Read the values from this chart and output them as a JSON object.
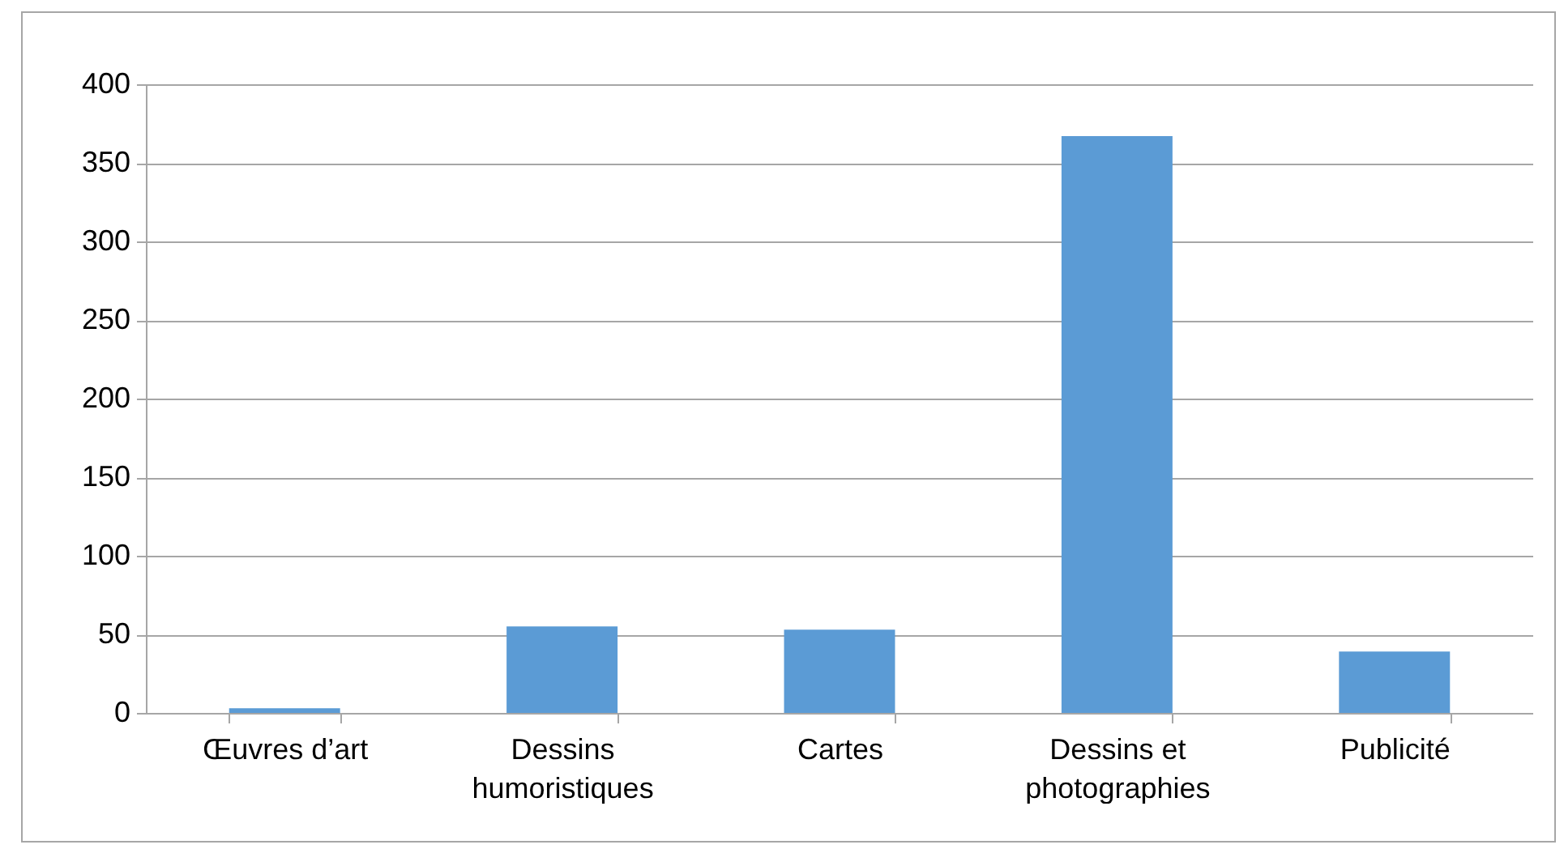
{
  "chart_data": {
    "type": "bar",
    "categories": [
      "Œuvres d’art",
      "Dessins humoristiques",
      "Cartes",
      "Dessins et photographies",
      "Publicité"
    ],
    "values": [
      3,
      55,
      53,
      367,
      39
    ],
    "color": "#5b9bd5",
    "ylim": [
      0,
      400
    ],
    "yticks": [
      0,
      50,
      100,
      150,
      200,
      250,
      300,
      350,
      400
    ],
    "grid": "y"
  }
}
